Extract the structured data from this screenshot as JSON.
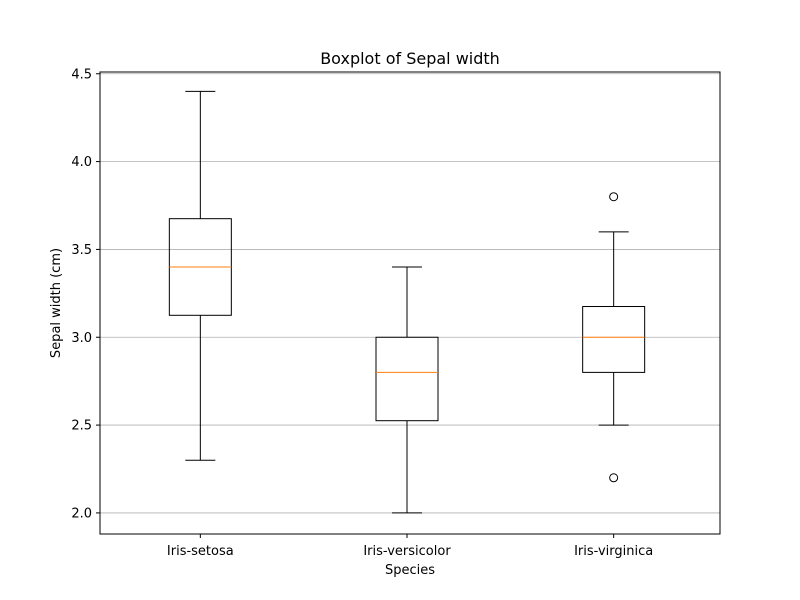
{
  "chart_data": {
    "type": "boxplot",
    "title": "Boxplot of Sepal width",
    "xlabel": "Species",
    "ylabel": "Sepal width (cm)",
    "ylim": [
      1.88,
      4.51
    ],
    "grid": "y",
    "yticks": [
      {
        "value": 2.0,
        "label": "2.0"
      },
      {
        "value": 2.5,
        "label": "2.5"
      },
      {
        "value": 3.0,
        "label": "3.0"
      },
      {
        "value": 3.5,
        "label": "3.5"
      },
      {
        "value": 4.0,
        "label": "4.0"
      },
      {
        "value": 4.5,
        "label": "4.5"
      }
    ],
    "categories": [
      "Iris-setosa",
      "Iris-versicolor",
      "Iris-virginica"
    ],
    "boxes": [
      {
        "category": "Iris-setosa",
        "whisker_low": 2.3,
        "q1": 3.125,
        "median": 3.4,
        "q3": 3.675,
        "whisker_high": 4.4,
        "outliers": []
      },
      {
        "category": "Iris-versicolor",
        "whisker_low": 2.0,
        "q1": 2.525,
        "median": 2.8,
        "q3": 3.0,
        "whisker_high": 3.4,
        "outliers": []
      },
      {
        "category": "Iris-virginica",
        "whisker_low": 2.5,
        "q1": 2.8,
        "median": 3.0,
        "q3": 3.175,
        "whisker_high": 3.6,
        "outliers": [
          3.8,
          2.2
        ]
      }
    ],
    "colors": {
      "box": "#000000",
      "median": "#ff7f0e",
      "grid": "#b0b0b0",
      "frame": "#000000"
    }
  }
}
